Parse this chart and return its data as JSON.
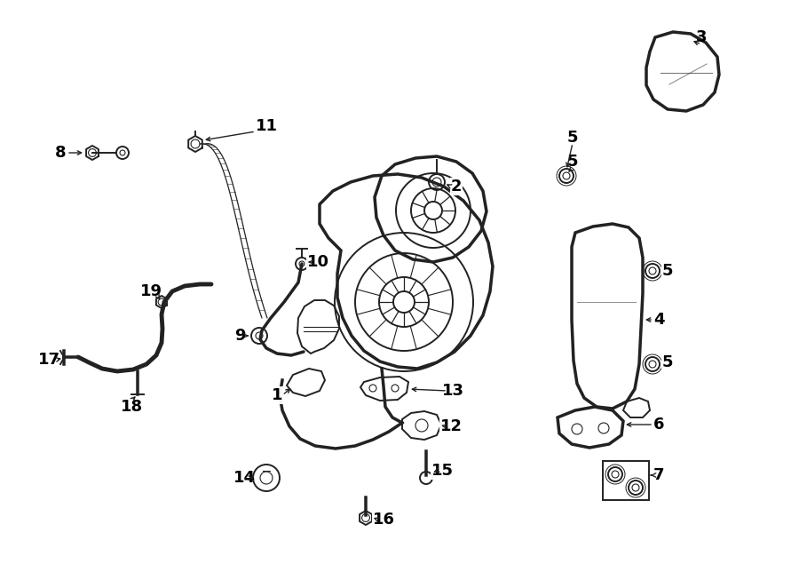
{
  "bg_color": "#ffffff",
  "line_color": "#222222",
  "text_color": "#000000",
  "figsize": [
    9.0,
    6.62
  ],
  "dpi": 100,
  "lw": 1.4,
  "fontsize": 13
}
